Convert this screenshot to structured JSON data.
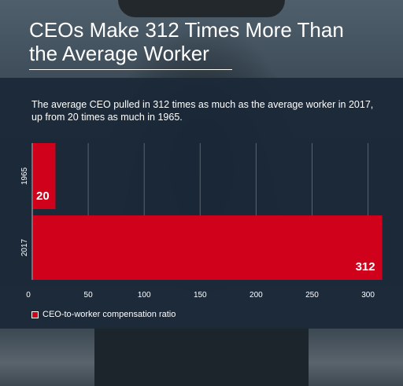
{
  "header": {
    "title_line1": "CEOs Make 312 Times More Than",
    "title_line2": "the Average Worker"
  },
  "subtitle_line1": "The average CEO pulled in 312 times as much as the average worker in 2017,",
  "subtitle_line2": "up from 20 times as much in 1965.",
  "colors": {
    "bar": "#d0021b",
    "panel": "#1a2838",
    "text": "#ffffff"
  },
  "chart_data": {
    "type": "bar",
    "orientation": "horizontal",
    "categories": [
      "1965",
      "2017"
    ],
    "series": [
      {
        "name": "CEO-to-worker compensation ratio",
        "values": [
          20,
          312
        ]
      }
    ],
    "data_labels": [
      "20",
      "312"
    ],
    "xlim": [
      0,
      320
    ],
    "xticks": [
      0,
      50,
      100,
      150,
      200,
      250,
      300
    ],
    "xtick_labels": [
      "0",
      "50",
      "100",
      "150",
      "200",
      "250",
      "300"
    ],
    "grid": true,
    "legend": "bottom-left"
  }
}
